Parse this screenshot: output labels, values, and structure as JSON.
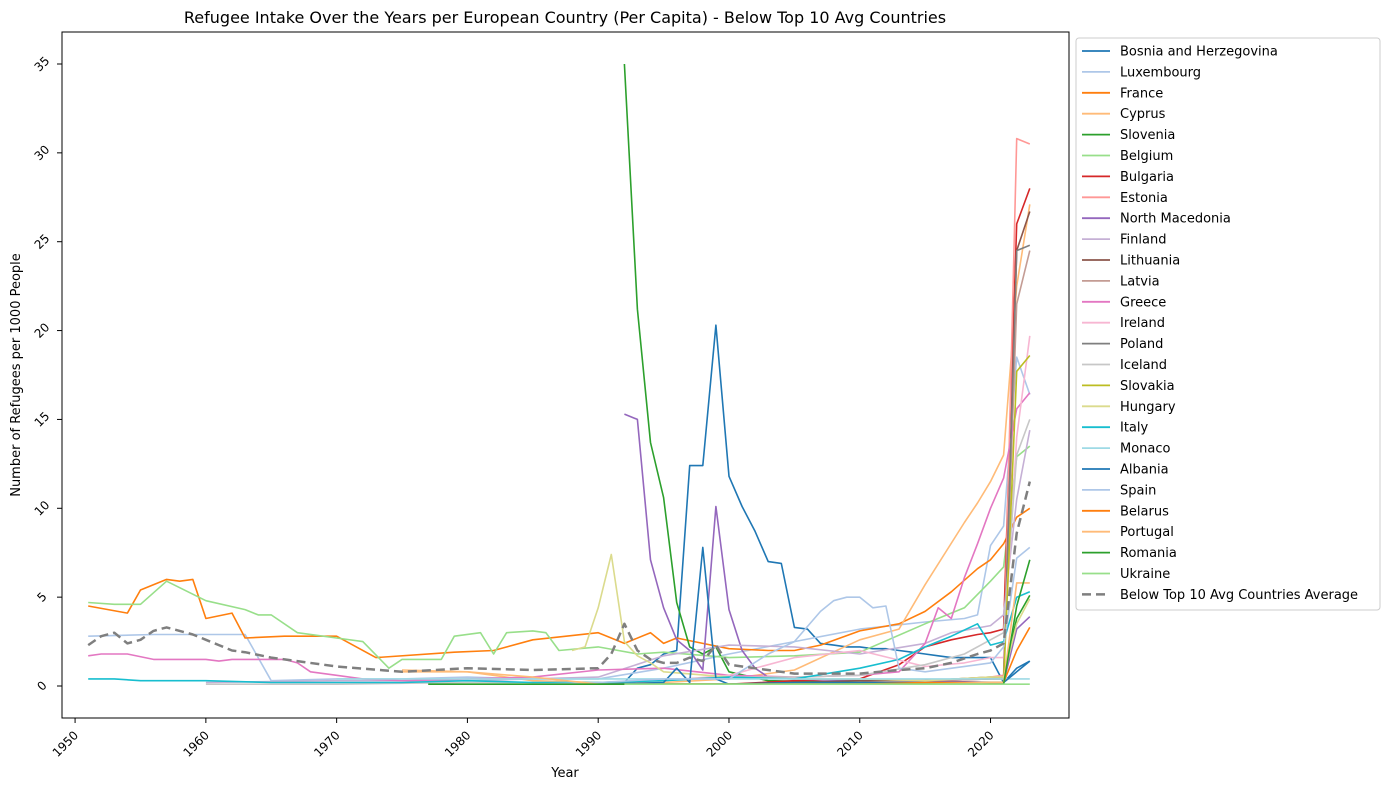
{
  "chart_data": {
    "type": "line",
    "title": "Refugee Intake Over the Years per European Country (Per Capita) - Below Top 10 Avg Countries",
    "xlabel": "Year",
    "ylabel": "Number of Refugees per 1000 People",
    "xlim": [
      1949,
      2026
    ],
    "ylim": [
      -1.8,
      36.8
    ],
    "xticks": [
      1950,
      1960,
      1970,
      1980,
      1990,
      2000,
      2010,
      2020
    ],
    "yticks": [
      0,
      5,
      10,
      15,
      20,
      25,
      30,
      35
    ],
    "ytick_rotation": 45,
    "xtick_rotation": 45,
    "grid": false,
    "legend_position": "outside-right-top",
    "series": [
      {
        "name": "Bosnia and Herzegovina",
        "color": "#1f77b4",
        "x": [
          1992,
          1993,
          1994,
          1995,
          1996,
          1997,
          1998,
          1999,
          2000,
          2001,
          2002,
          2003,
          2004,
          2005,
          2006,
          2007,
          2008,
          2009,
          2010,
          2011,
          2012,
          2013,
          2014,
          2015,
          2016,
          2017,
          2018,
          2019,
          2020,
          2021,
          2022,
          2023
        ],
        "y": [
          0.2,
          1.0,
          1.2,
          1.8,
          2.0,
          12.4,
          12.4,
          20.3,
          11.8,
          10.1,
          8.7,
          7.0,
          6.9,
          3.3,
          3.2,
          2.4,
          2.3,
          2.2,
          2.2,
          2.1,
          2.1,
          2.0,
          1.9,
          1.8,
          1.7,
          1.6,
          1.6,
          1.6,
          1.6,
          0.2,
          1.0,
          1.4
        ]
      },
      {
        "name": "Luxembourg",
        "color": "#aec7e8",
        "x": [
          1951,
          1956,
          1961,
          1963,
          1965,
          1970,
          1975,
          1980,
          1985,
          1990,
          1995,
          2000,
          2005,
          2010,
          2015,
          2018,
          2019,
          2020,
          2021,
          2022,
          2023
        ],
        "y": [
          2.8,
          2.9,
          2.9,
          2.9,
          0.3,
          0.4,
          0.4,
          0.5,
          0.4,
          0.4,
          1.0,
          1.8,
          2.5,
          3.2,
          3.6,
          3.8,
          4.0,
          7.9,
          9.0,
          18.5,
          16.4
        ]
      },
      {
        "name": "France",
        "color": "#ff7f0e",
        "x": [
          1951,
          1954,
          1955,
          1957,
          1958,
          1959,
          1960,
          1962,
          1963,
          1966,
          1970,
          1973,
          1979,
          1982,
          1985,
          1990,
          1992,
          1994,
          1995,
          1996,
          1998,
          2000,
          2003,
          2005,
          2007,
          2010,
          2013,
          2015,
          2017,
          2019,
          2020,
          2021,
          2022,
          2023
        ],
        "y": [
          4.5,
          4.1,
          5.4,
          6.0,
          5.9,
          6.0,
          3.8,
          4.1,
          2.7,
          2.8,
          2.8,
          1.6,
          1.9,
          2.0,
          2.6,
          3.0,
          2.4,
          3.0,
          2.4,
          2.7,
          2.4,
          2.1,
          2.0,
          2.0,
          2.3,
          3.1,
          3.5,
          4.2,
          5.3,
          6.6,
          7.1,
          8.0,
          9.5,
          10.0
        ]
      },
      {
        "name": "Cyprus",
        "color": "#ffbb78",
        "x": [
          1975,
          1980,
          1985,
          1990,
          1995,
          2000,
          2005,
          2010,
          2013,
          2015,
          2018,
          2019,
          2020,
          2021,
          2022,
          2023
        ],
        "y": [
          0.9,
          0.8,
          0.3,
          0.2,
          0.2,
          0.4,
          0.9,
          2.6,
          3.2,
          5.7,
          9.2,
          10.3,
          11.5,
          13.0,
          22.5,
          27.1
        ]
      },
      {
        "name": "Slovenia",
        "color": "#2ca02c",
        "x": [
          1992,
          1993,
          1994,
          1995,
          1996,
          1997,
          1998,
          1999,
          2000,
          2003,
          2010,
          2015,
          2020,
          2021,
          2022,
          2023
        ],
        "y": [
          35.0,
          21.2,
          13.7,
          10.6,
          4.7,
          2.2,
          1.8,
          2.2,
          0.8,
          0.3,
          0.2,
          0.3,
          0.5,
          0.5,
          3.8,
          5.1
        ]
      },
      {
        "name": "Belgium",
        "color": "#98df8a",
        "x": [
          1951,
          1953,
          1955,
          1957,
          1960,
          1963,
          1964,
          1965,
          1967,
          1970,
          1972,
          1974,
          1975,
          1978,
          1979,
          1981,
          1982,
          1983,
          1985,
          1986,
          1987,
          1990,
          1993,
          1995,
          2000,
          2005,
          2010,
          2015,
          2018,
          2020,
          2021,
          2022,
          2023
        ],
        "y": [
          4.7,
          4.6,
          4.6,
          5.9,
          4.8,
          4.3,
          4.0,
          4.0,
          3.0,
          2.7,
          2.5,
          1.0,
          1.5,
          1.5,
          2.8,
          3.0,
          1.8,
          3.0,
          3.1,
          3.0,
          2.0,
          2.2,
          1.8,
          1.9,
          1.6,
          1.7,
          1.9,
          3.5,
          4.4,
          5.9,
          6.7,
          12.9,
          13.5
        ]
      },
      {
        "name": "Bulgaria",
        "color": "#d62728",
        "x": [
          1992,
          1995,
          2000,
          2005,
          2010,
          2013,
          2015,
          2017,
          2019,
          2020,
          2021,
          2022,
          2023
        ],
        "y": [
          0.1,
          0.1,
          0.1,
          0.3,
          0.4,
          1.2,
          2.2,
          2.6,
          2.9,
          3.0,
          3.2,
          26.0,
          28.0
        ]
      },
      {
        "name": "Estonia",
        "color": "#ff9896",
        "x": [
          1992,
          2000,
          2005,
          2010,
          2015,
          2020,
          2021,
          2022,
          2023
        ],
        "y": [
          0.1,
          0.1,
          0.1,
          0.1,
          0.3,
          0.5,
          0.6,
          30.8,
          30.5
        ]
      },
      {
        "name": "North Macedonia",
        "color": "#9467bd",
        "x": [
          1992,
          1993,
          1994,
          1995,
          1996,
          1997,
          1998,
          1999,
          2000,
          2001,
          2002,
          2003,
          2005,
          2010,
          2015,
          2020,
          2021,
          2022,
          2023
        ],
        "y": [
          15.3,
          15.0,
          7.1,
          4.4,
          2.6,
          2.0,
          0.9,
          10.1,
          4.3,
          2.0,
          1.0,
          0.5,
          0.4,
          0.3,
          0.3,
          0.2,
          0.2,
          3.2,
          3.9
        ]
      },
      {
        "name": "Finland",
        "color": "#c5b0d5",
        "x": [
          1960,
          1970,
          1980,
          1990,
          1995,
          2000,
          2005,
          2010,
          2015,
          2017,
          2020,
          2021,
          2022,
          2023
        ],
        "y": [
          0.2,
          0.3,
          0.3,
          0.5,
          1.7,
          2.3,
          2.2,
          1.8,
          2.4,
          3.0,
          3.4,
          4.0,
          10.5,
          14.4
        ]
      },
      {
        "name": "Lithuania",
        "color": "#8c564b",
        "x": [
          1992,
          2000,
          2005,
          2010,
          2015,
          2020,
          2021,
          2022,
          2023
        ],
        "y": [
          0.1,
          0.1,
          0.2,
          0.3,
          0.3,
          0.4,
          0.4,
          24.5,
          26.7
        ]
      },
      {
        "name": "Latvia",
        "color": "#c49c94",
        "x": [
          1992,
          2000,
          2005,
          2010,
          2015,
          2020,
          2021,
          2022,
          2023
        ],
        "y": [
          0.1,
          0.1,
          0.1,
          0.2,
          0.3,
          0.4,
          0.4,
          21.5,
          24.5
        ]
      },
      {
        "name": "Greece",
        "color": "#e377c2",
        "x": [
          1951,
          1952,
          1953,
          1954,
          1956,
          1958,
          1960,
          1961,
          1962,
          1963,
          1966,
          1967,
          1968,
          1970,
          1972,
          1975,
          1980,
          1985,
          1990,
          1995,
          2000,
          2005,
          2010,
          2013,
          2015,
          2016,
          2017,
          2018,
          2019,
          2020,
          2021,
          2022,
          2023
        ],
        "y": [
          1.7,
          1.8,
          1.8,
          1.8,
          1.5,
          1.5,
          1.5,
          1.4,
          1.5,
          1.5,
          1.5,
          1.3,
          0.8,
          0.6,
          0.4,
          0.3,
          0.4,
          0.5,
          0.9,
          1.0,
          0.6,
          0.5,
          0.6,
          0.8,
          2.4,
          4.4,
          3.8,
          6.1,
          8.0,
          10.0,
          11.7,
          15.6,
          16.5
        ]
      },
      {
        "name": "Ireland",
        "color": "#f7b6d2",
        "x": [
          1990,
          1995,
          2000,
          2005,
          2010,
          2015,
          2018,
          2020,
          2021,
          2022,
          2023
        ],
        "y": [
          0.2,
          0.3,
          0.6,
          1.6,
          2.0,
          1.1,
          1.3,
          1.6,
          1.6,
          14.0,
          19.7
        ]
      },
      {
        "name": "Poland",
        "color": "#7f7f7f",
        "x": [
          1992,
          2000,
          2005,
          2010,
          2015,
          2020,
          2021,
          2022,
          2023
        ],
        "y": [
          0.1,
          0.1,
          0.1,
          0.1,
          0.1,
          0.1,
          0.1,
          24.5,
          24.8
        ]
      },
      {
        "name": "Iceland",
        "color": "#c7c7c7",
        "x": [
          1960,
          1970,
          1980,
          1990,
          2000,
          2005,
          2010,
          2015,
          2018,
          2020,
          2021,
          2022,
          2023
        ],
        "y": [
          0.1,
          0.1,
          0.2,
          0.2,
          0.5,
          0.5,
          0.6,
          1.2,
          1.8,
          2.6,
          3.0,
          13.0,
          15.0
        ]
      },
      {
        "name": "Slovakia",
        "color": "#bcbd22",
        "x": [
          1993,
          2000,
          2005,
          2010,
          2015,
          2020,
          2021,
          2022,
          2023
        ],
        "y": [
          0.1,
          0.1,
          0.1,
          0.1,
          0.1,
          0.2,
          0.2,
          17.7,
          18.6
        ]
      },
      {
        "name": "Hungary",
        "color": "#dbdb8d",
        "x": [
          1988,
          1989,
          1990,
          1991,
          1992,
          1993,
          1994,
          1995,
          2000,
          2005,
          2010,
          2015,
          2020,
          2021,
          2022,
          2023
        ],
        "y": [
          2.0,
          2.2,
          4.4,
          7.4,
          2.5,
          1.7,
          1.3,
          0.8,
          0.5,
          0.4,
          0.4,
          0.3,
          0.5,
          0.5,
          3.5,
          4.9
        ]
      },
      {
        "name": "Italy",
        "color": "#17becf",
        "x": [
          1951,
          1953,
          1955,
          1960,
          1965,
          1970,
          1975,
          1980,
          1985,
          1990,
          1995,
          2000,
          2005,
          2010,
          2013,
          2015,
          2017,
          2019,
          2020,
          2021,
          2022,
          2023
        ],
        "y": [
          0.4,
          0.4,
          0.3,
          0.3,
          0.2,
          0.2,
          0.2,
          0.3,
          0.2,
          0.2,
          0.3,
          0.5,
          0.4,
          1.0,
          1.5,
          2.2,
          2.8,
          3.5,
          2.3,
          2.5,
          5.0,
          5.3
        ]
      },
      {
        "name": "Monaco",
        "color": "#9edae5",
        "x": [
          1970,
          1980,
          1990,
          2000,
          2010,
          2020,
          2021,
          2022,
          2023
        ],
        "y": [
          0.4,
          0.4,
          0.4,
          0.4,
          0.4,
          0.4,
          0.4,
          0.4,
          0.4
        ]
      },
      {
        "name": "Albania",
        "color": "#1f77b4",
        "x": [
          1990,
          1995,
          1996,
          1997,
          1998,
          1999,
          2000,
          2005,
          2010,
          2015,
          2020,
          2021,
          2022,
          2023
        ],
        "y": [
          0.1,
          0.2,
          1.0,
          0.2,
          7.8,
          0.4,
          0.1,
          0.2,
          0.2,
          0.2,
          0.2,
          0.2,
          0.8,
          1.4
        ]
      },
      {
        "name": "Spain",
        "color": "#aec7e8",
        "x": [
          1985,
          1990,
          1995,
          2000,
          2003,
          2005,
          2007,
          2008,
          2009,
          2010,
          2011,
          2012,
          2013,
          2015,
          2020,
          2021,
          2022,
          2023
        ],
        "y": [
          0.1,
          0.2,
          0.4,
          0.4,
          1.8,
          2.5,
          4.2,
          4.8,
          5.0,
          5.0,
          4.4,
          4.5,
          1.0,
          0.8,
          1.3,
          2.2,
          7.2,
          7.8
        ]
      },
      {
        "name": "Belarus",
        "color": "#ff7f0e",
        "x": [
          1995,
          2000,
          2005,
          2010,
          2015,
          2020,
          2021,
          2022,
          2023
        ],
        "y": [
          0.1,
          0.1,
          0.1,
          0.1,
          0.2,
          0.2,
          0.2,
          2.0,
          3.3
        ]
      },
      {
        "name": "Portugal",
        "color": "#ffbb78",
        "x": [
          1975,
          1980,
          1985,
          1990,
          1995,
          2000,
          2005,
          2010,
          2015,
          2020,
          2021,
          2022,
          2023
        ],
        "y": [
          0.8,
          0.8,
          0.5,
          0.1,
          0.1,
          0.1,
          0.1,
          0.1,
          0.1,
          0.2,
          0.2,
          5.8,
          5.8
        ]
      },
      {
        "name": "Romania",
        "color": "#2ca02c",
        "x": [
          1977,
          1980,
          1984,
          1990,
          1995,
          2000,
          2005,
          2010,
          2015,
          2020,
          2021,
          2022,
          2023
        ],
        "y": [
          0.1,
          0.1,
          0.1,
          0.1,
          0.1,
          0.1,
          0.1,
          0.1,
          0.1,
          0.1,
          0.1,
          4.5,
          7.1
        ]
      },
      {
        "name": "Ukraine",
        "color": "#98df8a",
        "x": [
          1992,
          1995,
          2000,
          2005,
          2010,
          2015,
          2020,
          2021,
          2022,
          2023
        ],
        "y": [
          0.1,
          0.1,
          0.1,
          0.1,
          0.1,
          0.1,
          0.1,
          0.1,
          0.1,
          0.1
        ]
      },
      {
        "name": "Below Top 10 Avg Countries Average",
        "color": "#7f7f7f",
        "dashed": true,
        "x": [
          1951,
          1952,
          1953,
          1954,
          1955,
          1956,
          1957,
          1958,
          1959,
          1960,
          1961,
          1962,
          1963,
          1965,
          1970,
          1975,
          1980,
          1985,
          1990,
          1991,
          1992,
          1993,
          1994,
          1995,
          1996,
          1997,
          1998,
          1999,
          2000,
          2005,
          2010,
          2013,
          2015,
          2017,
          2019,
          2020,
          2021,
          2022,
          2023
        ],
        "y": [
          2.3,
          2.8,
          3.0,
          2.4,
          2.6,
          3.1,
          3.3,
          3.1,
          2.9,
          2.6,
          2.3,
          2.0,
          1.9,
          1.6,
          1.1,
          0.8,
          1.0,
          0.9,
          1.0,
          1.8,
          3.5,
          2.0,
          1.5,
          1.3,
          1.3,
          1.6,
          1.4,
          2.3,
          1.2,
          0.7,
          0.7,
          0.9,
          1.0,
          1.3,
          1.8,
          2.0,
          2.4,
          8.6,
          11.5
        ]
      }
    ]
  }
}
